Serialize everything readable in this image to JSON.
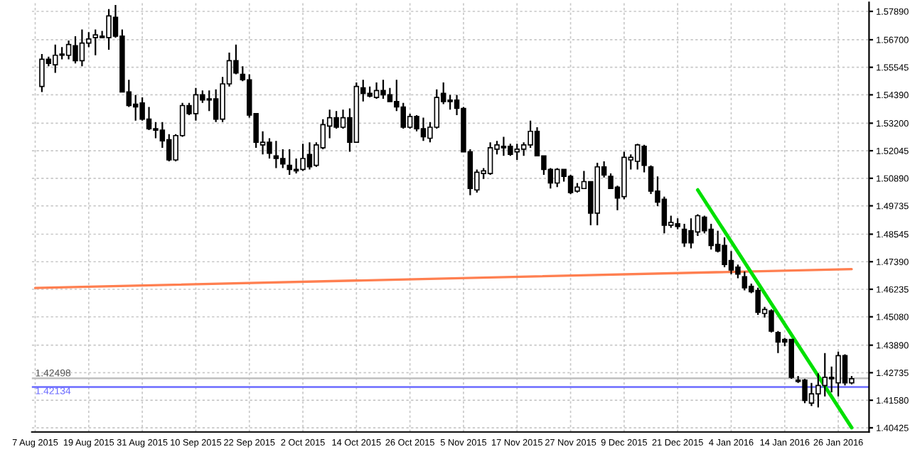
{
  "chart_data": {
    "type": "candlestick",
    "categories": [
      "7 Aug 2015",
      null,
      null,
      null,
      null,
      null,
      null,
      null,
      "19 Aug 2015",
      null,
      null,
      null,
      null,
      null,
      null,
      null,
      "31 Aug 2015",
      null,
      null,
      null,
      null,
      null,
      null,
      null,
      "10 Sep 2015",
      null,
      null,
      null,
      null,
      null,
      null,
      null,
      "22 Sep 2015",
      null,
      null,
      null,
      null,
      null,
      null,
      null,
      "2 Oct 2015",
      null,
      null,
      null,
      null,
      null,
      null,
      null,
      "14 Oct 2015",
      null,
      null,
      null,
      null,
      null,
      null,
      null,
      "26 Oct 2015",
      null,
      null,
      null,
      null,
      null,
      null,
      null,
      "5 Nov 2015",
      null,
      null,
      null,
      null,
      null,
      null,
      null,
      "17 Nov 2015",
      null,
      null,
      null,
      null,
      null,
      null,
      null,
      "27 Nov 2015",
      null,
      null,
      null,
      null,
      null,
      null,
      null,
      "9 Dec 2015",
      null,
      null,
      null,
      null,
      null,
      null,
      null,
      "21 Dec 2015",
      null,
      null,
      null,
      null,
      null,
      null,
      null,
      "4 Jan 2016",
      null,
      null,
      null,
      null,
      null,
      null,
      null,
      "14 Jan 2016",
      null,
      null,
      null,
      null,
      null,
      null,
      null,
      "26 Jan 2016",
      null,
      null
    ],
    "ohlc": [
      null,
      [
        1.5474,
        1.561,
        1.5451,
        1.5588
      ],
      [
        1.5588,
        1.5599,
        1.5559,
        1.5571
      ],
      [
        1.5565,
        1.565,
        1.5531,
        1.5605
      ],
      [
        1.561,
        1.5639,
        1.5588,
        1.5605
      ],
      [
        1.5605,
        1.5667,
        1.5588,
        1.565
      ],
      [
        1.5645,
        1.5685,
        1.5571,
        1.5582
      ],
      [
        1.5582,
        1.5713,
        1.5559,
        1.5656
      ],
      [
        1.5656,
        1.5702,
        1.5639,
        1.5673
      ],
      [
        1.5679,
        1.5713,
        1.5605,
        1.569
      ],
      [
        1.5685,
        1.5707,
        1.5679,
        1.5679
      ],
      [
        1.5679,
        1.5799,
        1.5628,
        1.577
      ],
      [
        1.5764,
        1.5816,
        1.5679,
        1.5685
      ],
      [
        1.5685,
        1.5713,
        1.5451,
        1.5451
      ],
      [
        1.5451,
        1.5502,
        1.5388,
        1.5394
      ],
      [
        1.54,
        1.5439,
        1.5331,
        1.5388
      ],
      [
        1.5405,
        1.5428,
        1.5331,
        1.5337
      ],
      [
        1.5337,
        1.5388,
        1.5291,
        1.5297
      ],
      [
        1.5297,
        1.5325,
        1.5257,
        1.5291
      ],
      [
        1.5291,
        1.5325,
        1.5217,
        1.5246
      ],
      [
        1.5251,
        1.5274,
        1.516,
        1.5166
      ],
      [
        1.5166,
        1.5274,
        1.516,
        1.5268
      ],
      [
        1.5268,
        1.5405,
        1.5263,
        1.5394
      ],
      [
        1.5394,
        1.5405,
        1.5354,
        1.536
      ],
      [
        1.536,
        1.5468,
        1.5331,
        1.5439
      ],
      [
        1.5439,
        1.5457,
        1.5405,
        1.5417
      ],
      [
        1.5422,
        1.5457,
        1.5371,
        1.5417
      ],
      [
        1.5422,
        1.5462,
        1.5325,
        1.5337
      ],
      [
        1.5337,
        1.5514,
        1.5325,
        1.5485
      ],
      [
        1.5485,
        1.5616,
        1.5474,
        1.5582
      ],
      [
        1.5582,
        1.565,
        1.5525,
        1.5531
      ],
      [
        1.5525,
        1.5559,
        1.5496,
        1.5502
      ],
      [
        1.5502,
        1.5525,
        1.5343,
        1.5354
      ],
      [
        1.536,
        1.536,
        1.5217,
        1.524
      ],
      [
        1.5229,
        1.5286,
        1.5189,
        1.524
      ],
      [
        1.524,
        1.5257,
        1.5172,
        1.5194
      ],
      [
        1.5183,
        1.5246,
        1.5132,
        1.5172
      ],
      [
        1.5172,
        1.5211,
        1.5132,
        1.5149
      ],
      [
        1.5143,
        1.5211,
        1.5103,
        1.5126
      ],
      [
        1.5126,
        1.5172,
        1.5109,
        1.512
      ],
      [
        1.5126,
        1.5234,
        1.512,
        1.5172
      ],
      [
        1.5189,
        1.524,
        1.5126,
        1.5137
      ],
      [
        1.5143,
        1.524,
        1.5137,
        1.5229
      ],
      [
        1.5217,
        1.5337,
        1.5211,
        1.5314
      ],
      [
        1.5308,
        1.5377,
        1.5257,
        1.5343
      ],
      [
        1.5343,
        1.5371,
        1.5297,
        1.5303
      ],
      [
        1.5303,
        1.5377,
        1.5297,
        1.5343
      ],
      [
        1.5343,
        1.5382,
        1.52,
        1.524
      ],
      [
        1.524,
        1.5491,
        1.524,
        1.5474
      ],
      [
        1.5468,
        1.5502,
        1.5411,
        1.5445
      ],
      [
        1.5445,
        1.5474,
        1.5428,
        1.5434
      ],
      [
        1.5428,
        1.5491,
        1.5422,
        1.5457
      ],
      [
        1.5457,
        1.5502,
        1.5422,
        1.5439
      ],
      [
        1.5439,
        1.5468,
        1.5411,
        1.5411
      ],
      [
        1.5411,
        1.5502,
        1.5371,
        1.5388
      ],
      [
        1.5388,
        1.5405,
        1.5297,
        1.5303
      ],
      [
        1.5303,
        1.536,
        1.5297,
        1.5348
      ],
      [
        1.5348,
        1.5354,
        1.5286,
        1.5297
      ],
      [
        1.5297,
        1.5343,
        1.5246,
        1.5263
      ],
      [
        1.5257,
        1.5325,
        1.524,
        1.5303
      ],
      [
        1.5303,
        1.5462,
        1.5297,
        1.5428
      ],
      [
        1.5445,
        1.5491,
        1.54,
        1.5411
      ],
      [
        1.5417,
        1.5439,
        1.5377,
        1.5411
      ],
      [
        1.5417,
        1.5439,
        1.5354,
        1.5382
      ],
      [
        1.5382,
        1.5388,
        1.52,
        1.52
      ],
      [
        1.52,
        1.5211,
        1.5018,
        1.5046
      ],
      [
        1.504,
        1.5126,
        1.5029,
        1.5114
      ],
      [
        1.5109,
        1.5132,
        1.5086,
        1.512
      ],
      [
        1.5109,
        1.524,
        1.5103,
        1.5217
      ],
      [
        1.5211,
        1.5246,
        1.5189,
        1.5229
      ],
      [
        1.5223,
        1.5263,
        1.5183,
        1.5217
      ],
      [
        1.5223,
        1.5234,
        1.5183,
        1.5189
      ],
      [
        1.52,
        1.5234,
        1.5166,
        1.5211
      ],
      [
        1.5211,
        1.524,
        1.5183,
        1.5229
      ],
      [
        1.5229,
        1.5331,
        1.5217,
        1.5286
      ],
      [
        1.5286,
        1.5303,
        1.5183,
        1.5183
      ],
      [
        1.5183,
        1.5183,
        1.5103,
        1.5126
      ],
      [
        1.5126,
        1.5132,
        1.5046,
        1.5069
      ],
      [
        1.5069,
        1.5132,
        1.5052,
        1.5126
      ],
      [
        1.5126,
        1.5126,
        1.5075,
        1.5097
      ],
      [
        1.5097,
        1.5103,
        1.5023,
        1.5029
      ],
      [
        1.5035,
        1.5069,
        1.5029,
        1.5052
      ],
      [
        1.5046,
        1.512,
        1.5046,
        1.5075
      ],
      [
        1.5075,
        1.5075,
        1.4892,
        1.4943
      ],
      [
        1.4943,
        1.5154,
        1.4892,
        1.5137
      ],
      [
        1.5137,
        1.516,
        1.5092,
        1.5103
      ],
      [
        1.5097,
        1.5109,
        1.5046,
        1.5046
      ],
      [
        1.5052,
        1.5058,
        1.4955,
        1.5006
      ],
      [
        1.5012,
        1.52,
        1.5001,
        1.5177
      ],
      [
        1.5166,
        1.5189,
        1.5126,
        1.5177
      ],
      [
        1.516,
        1.5234,
        1.5126,
        1.5229
      ],
      [
        1.5223,
        1.5229,
        1.5114,
        1.5143
      ],
      [
        1.5137,
        1.5143,
        1.5023,
        1.5035
      ],
      [
        1.5035,
        1.5097,
        1.4972,
        1.4989
      ],
      [
        1.5001,
        1.5012,
        1.4858,
        1.4892
      ],
      [
        1.4892,
        1.4932,
        1.4881,
        1.4904
      ],
      [
        1.4898,
        1.4921,
        1.4875,
        1.4887
      ],
      [
        1.4875,
        1.4898,
        1.4801,
        1.4818
      ],
      [
        1.4869,
        1.4921,
        1.4795,
        1.4818
      ],
      [
        1.4864,
        1.4938,
        1.4847,
        1.4932
      ],
      [
        1.4926,
        1.4932,
        1.4858,
        1.4869
      ],
      [
        1.4875,
        1.4898,
        1.479,
        1.4807
      ],
      [
        1.4812,
        1.4869,
        1.4778,
        1.4784
      ],
      [
        1.4807,
        1.4841,
        1.4716,
        1.4727
      ],
      [
        1.4744,
        1.4784,
        1.4687,
        1.4704
      ],
      [
        1.4716,
        1.4727,
        1.467,
        1.4687
      ],
      [
        1.4676,
        1.4698,
        1.4619,
        1.463
      ],
      [
        1.4636,
        1.4647,
        1.4607,
        1.4613
      ],
      [
        1.4619,
        1.463,
        1.4516,
        1.4527
      ],
      [
        1.4522,
        1.455,
        1.4505,
        1.4539
      ],
      [
        1.4533,
        1.4539,
        1.4442,
        1.4448
      ],
      [
        1.4442,
        1.4448,
        1.4356,
        1.4402
      ],
      [
        1.4413,
        1.4419,
        1.4385,
        1.4402
      ],
      [
        1.4413,
        1.4413,
        1.4248,
        1.4254
      ],
      [
        1.4242,
        1.426,
        1.4231,
        1.4237
      ],
      [
        1.4242,
        1.4248,
        1.4146,
        1.4157
      ],
      [
        1.4146,
        1.4231,
        1.4134,
        1.4185
      ],
      [
        1.4185,
        1.4271,
        1.4128,
        1.422
      ],
      [
        1.422,
        1.4356,
        1.4174,
        1.4254
      ],
      [
        1.4254,
        1.4299,
        1.4191,
        1.4248
      ],
      [
        1.4231,
        1.4362,
        1.4174,
        1.4345
      ],
      [
        1.4345,
        1.4351,
        1.422,
        1.4231
      ],
      [
        1.4231,
        1.426,
        1.4225,
        1.4248
      ]
    ],
    "series": [
      {
        "type": "line",
        "color": "#ff7f50",
        "values": [
          1.4629,
          null,
          null,
          null,
          null,
          null,
          null,
          null,
          null,
          null,
          null,
          null,
          null,
          null,
          null,
          null,
          null,
          null,
          null,
          null,
          null,
          null,
          null,
          null,
          null,
          null,
          null,
          null,
          null,
          null,
          null,
          null,
          null,
          null,
          null,
          null,
          null,
          null,
          null,
          null,
          null,
          null,
          null,
          null,
          null,
          null,
          null,
          null,
          null,
          null,
          null,
          null,
          null,
          null,
          null,
          null,
          null,
          null,
          null,
          null,
          null,
          null,
          null,
          null,
          null,
          null,
          null,
          null,
          null,
          null,
          null,
          null,
          null,
          null,
          null,
          null,
          null,
          null,
          null,
          null,
          null,
          null,
          null,
          null,
          null,
          null,
          null,
          null,
          null,
          null,
          null,
          null,
          null,
          null,
          null,
          null,
          null,
          null,
          null,
          null,
          null,
          null,
          null,
          null,
          null,
          null,
          null,
          null,
          null,
          null,
          null,
          null,
          null,
          null,
          null,
          null,
          null,
          null,
          null,
          null,
          null,
          null,
          1.4708
        ]
      },
      {
        "type": "line",
        "color": "#00e000",
        "values": [
          null,
          null,
          null,
          null,
          null,
          null,
          null,
          null,
          null,
          null,
          null,
          null,
          null,
          null,
          null,
          null,
          null,
          null,
          null,
          null,
          null,
          null,
          null,
          null,
          null,
          null,
          null,
          null,
          null,
          null,
          null,
          null,
          null,
          null,
          null,
          null,
          null,
          null,
          null,
          null,
          null,
          null,
          null,
          null,
          null,
          null,
          null,
          null,
          null,
          null,
          null,
          null,
          null,
          null,
          null,
          null,
          null,
          null,
          null,
          null,
          null,
          null,
          null,
          null,
          null,
          null,
          null,
          null,
          null,
          null,
          null,
          null,
          null,
          null,
          null,
          null,
          null,
          null,
          null,
          null,
          null,
          null,
          null,
          null,
          null,
          null,
          null,
          null,
          null,
          null,
          null,
          null,
          null,
          null,
          null,
          null,
          null,
          null,
          null,
          1.504,
          null,
          null,
          null,
          null,
          null,
          null,
          null,
          null,
          null,
          null,
          null,
          null,
          null,
          null,
          null,
          null,
          null,
          null,
          null,
          null,
          null,
          null,
          1.4043
        ]
      }
    ],
    "ylim": [
      1.4025,
      1.5827
    ],
    "yticks": [
      {
        "value": 1.5789,
        "label": "1.57890"
      },
      {
        "value": 1.567,
        "label": "1.56700"
      },
      {
        "value": 1.55545,
        "label": "1.55545"
      },
      {
        "value": 1.5439,
        "label": "1.54390"
      },
      {
        "value": 1.532,
        "label": "1.53200"
      },
      {
        "value": 1.52045,
        "label": "1.52045"
      },
      {
        "value": 1.5089,
        "label": "1.50890"
      },
      {
        "value": 1.49735,
        "label": "1.49735"
      },
      {
        "value": 1.48545,
        "label": "1.48545"
      },
      {
        "value": 1.4739,
        "label": "1.47390"
      },
      {
        "value": 1.46235,
        "label": "1.46235"
      },
      {
        "value": 1.4508,
        "label": "1.45080"
      },
      {
        "value": 1.4389,
        "label": "1.43890"
      },
      {
        "value": 1.42735,
        "label": "1.42735"
      },
      {
        "value": 1.4158,
        "label": "1.41580"
      },
      {
        "value": 1.40425,
        "label": "1.40425"
      }
    ],
    "ref_lines": [
      {
        "axis": "y",
        "value": 1.42498,
        "label": "1.42498",
        "color": "#c0c0c0"
      },
      {
        "axis": "y",
        "value": 1.42134,
        "label": "1.42134",
        "color": "#6b6bff"
      }
    ],
    "grid": true
  }
}
